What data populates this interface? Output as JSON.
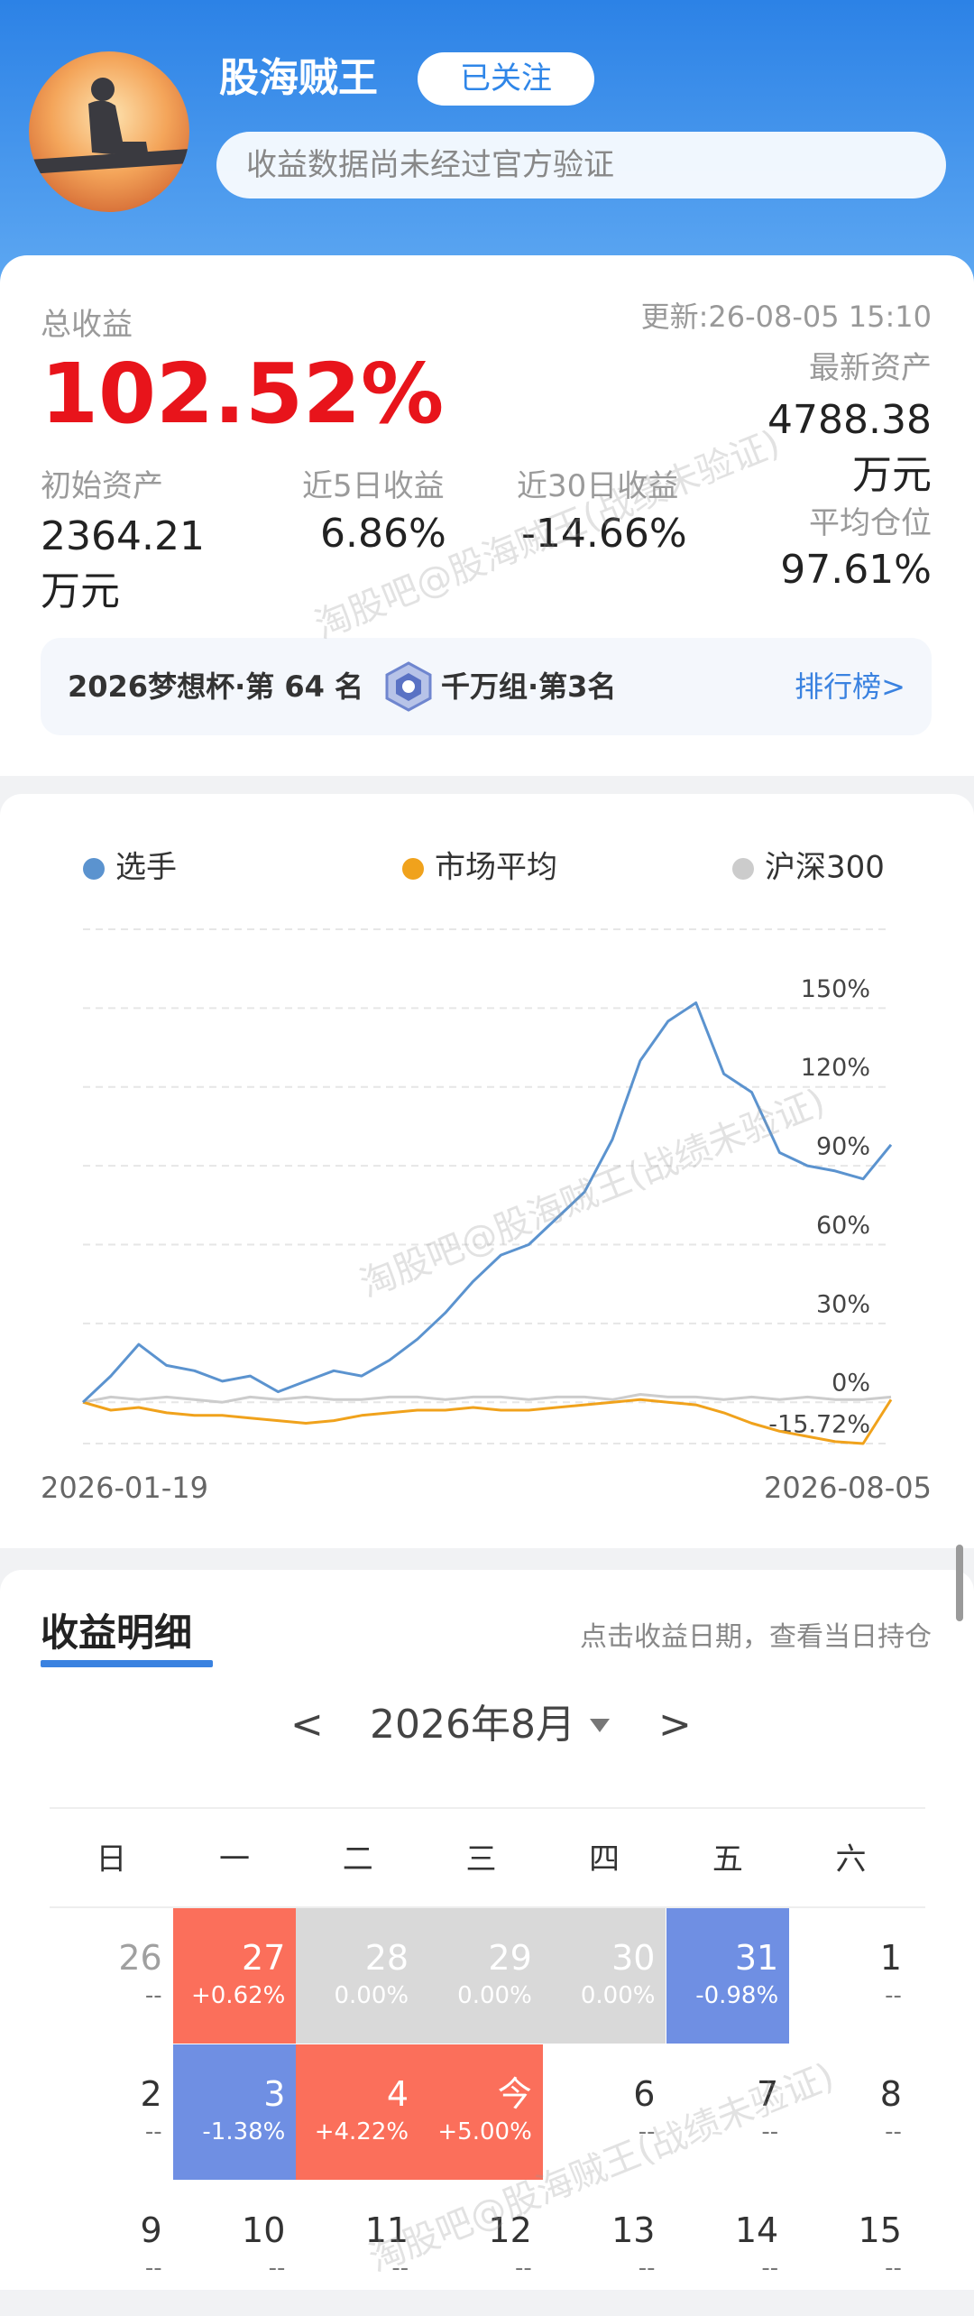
{
  "header": {
    "name": "股海贼王",
    "follow_button": "已关注",
    "notice": "收益数据尚未经过官方验证"
  },
  "summary": {
    "total_label": "总收益",
    "total_value": "102.52%",
    "update_time": "更新:26-08-05 15:10",
    "latest_assets_label": "最新资产",
    "latest_assets_value": "4788.38万元",
    "avg_position_label": "平均仓位",
    "avg_position_value": "97.61%",
    "initial_assets_label": "初始资产",
    "initial_assets_value": "2364.21万元",
    "return_5d_label": "近5日收益",
    "return_5d_value": "6.86%",
    "return_30d_label": "近30日收益",
    "return_30d_value": "-14.66%"
  },
  "ranking": {
    "cup": "2026梦想杯·第 64 名",
    "group": "千万组·第3名",
    "link": "排行榜>"
  },
  "watermark": "淘股吧@股海贼王(战绩未验证)",
  "chart_data": {
    "type": "line",
    "x": [
      "2026-01-19",
      null,
      null,
      null,
      null,
      null,
      null,
      null,
      null,
      null,
      null,
      null,
      null,
      null,
      null,
      null,
      null,
      null,
      null,
      null,
      null,
      null,
      null,
      null,
      null,
      null,
      null,
      null,
      null,
      "2026-08-05"
    ],
    "series": [
      {
        "name": "选手",
        "color": "#5b93cf",
        "values": [
          0,
          10,
          22,
          14,
          12,
          8,
          10,
          4,
          8,
          12,
          10,
          16,
          24,
          34,
          46,
          56,
          60,
          70,
          80,
          100,
          130,
          145,
          152,
          125,
          118,
          95,
          90,
          88,
          85,
          98
        ]
      },
      {
        "name": "市场平均",
        "color": "#f0a21c",
        "values": [
          0,
          -3,
          -2,
          -4,
          -5,
          -5,
          -6,
          -7,
          -8,
          -7,
          -5,
          -4,
          -3,
          -3,
          -2,
          -3,
          -3,
          -2,
          -1,
          0,
          1,
          0,
          -1,
          -4,
          -8,
          -11,
          -13,
          -15,
          -15.72,
          1
        ]
      },
      {
        "name": "沪深300",
        "color": "#cccccc",
        "values": [
          0,
          2,
          1,
          2,
          1,
          0,
          2,
          1,
          2,
          1,
          1,
          2,
          2,
          1,
          2,
          2,
          1,
          2,
          2,
          1,
          3,
          2,
          2,
          1,
          2,
          1,
          2,
          1,
          1,
          2
        ]
      }
    ],
    "ylim": [
      -15.72,
      180
    ],
    "yticks": [
      {
        "value": 150,
        "label": "150%"
      },
      {
        "value": 120,
        "label": "120%"
      },
      {
        "value": 90,
        "label": "90%"
      },
      {
        "value": 60,
        "label": "60%"
      },
      {
        "value": 30,
        "label": "30%"
      },
      {
        "value": 0,
        "label": "0%"
      },
      {
        "value": -15.72,
        "label": "-15.72%"
      }
    ],
    "grid": true
  },
  "calendar": {
    "title": "收益明细",
    "hint": "点击收益日期，查看当日持仓",
    "prev": "<",
    "month": "2026年8月",
    "next": ">",
    "weekdays": [
      "日",
      "一",
      "二",
      "三",
      "四",
      "五",
      "六"
    ],
    "weeks": [
      [
        {
          "day": 26,
          "change": "--",
          "text_color": "#a0a0a0"
        },
        {
          "day": 27,
          "change": "+0.62%",
          "color": "#fb6f5b"
        },
        {
          "day": 28,
          "change": "0.00%",
          "color": "#d9d9d9"
        },
        {
          "day": 29,
          "change": "0.00%",
          "color": "#d9d9d9"
        },
        {
          "day": 30,
          "change": "0.00%",
          "color": "#d9d9d9"
        },
        {
          "day": 31,
          "change": "-0.98%",
          "color": "#6f8fe3"
        },
        {
          "day": 1,
          "change": "--"
        }
      ],
      [
        {
          "day": 2,
          "change": "--"
        },
        {
          "day": 3,
          "change": "-1.38%",
          "color": "#6f8fe3"
        },
        {
          "day": 4,
          "change": "+4.22%",
          "color": "#fb6f5b"
        },
        {
          "day": "今",
          "change": "+5.00%",
          "color": "#fb6f5b"
        },
        {
          "day": 6,
          "change": "--"
        },
        {
          "day": 7,
          "change": "--"
        },
        {
          "day": 8,
          "change": "--"
        }
      ],
      [
        {
          "day": 9,
          "change": "--"
        },
        {
          "day": 10,
          "change": "--"
        },
        {
          "day": 11,
          "change": "--"
        },
        {
          "day": 12,
          "change": "--"
        },
        {
          "day": 13,
          "change": "--"
        },
        {
          "day": 14,
          "change": "--"
        },
        {
          "day": 15,
          "change": "--"
        }
      ]
    ]
  }
}
